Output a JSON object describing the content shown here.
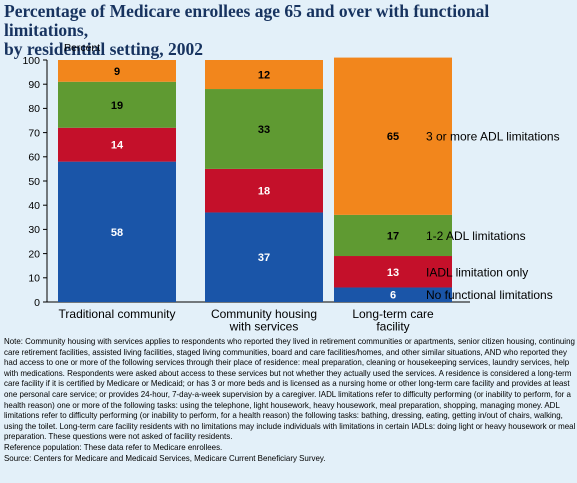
{
  "page": {
    "title": "Percentage of Medicare enrollees age 65 and over with functional limitations,\nby residential setting, 2002",
    "note": "Note: Community housing with services applies to respondents who reported they lived in retirement communities or apartments, senior citizen housing, continuing care retirement facilities, assisted living facilities, staged living communities, board and care facilities/homes, and other similar situations, AND who reported they had access to one or more of the following services through their place of residence: meal preparation, cleaning or housekeeping services, laundry services, help with medications. Respondents were asked about access to these services but not whether they actually used the services. A residence is considered a long-term care facility if it is certified by Medicare or Medicaid; or has 3 or more beds and is licensed as a nursing home or other long-term care facility and provides at least one personal care service; or provides 24-hour, 7-day-a-week supervision by a caregiver. IADL limitations refer to difficulty performing (or inability to perform, for a health reason) one or more of the following tasks: using the telephone, light housework, heavy housework, meal preparation, shopping, managing money. ADL limitations refer to difficulty performing (or inability to perform, for a health reason) the following tasks: bathing, dressing, eating, getting in/out of chairs, walking, using the toilet. Long-term care facility residents with no limitations may include individuals with limitations in certain IADLs: doing light or heavy housework or meal preparation. These questions were not asked of facility residents.",
    "reference": "Reference population: These data refer to Medicare enrollees.",
    "source": "Source: Centers for Medicare and Medicaid Services, Medicare Current Beneficiary Survey."
  },
  "chart_data": {
    "type": "bar",
    "stacked": true,
    "ylabel": "Percent",
    "ylim": [
      0,
      100
    ],
    "yticks": [
      0,
      10,
      20,
      30,
      40,
      50,
      60,
      70,
      80,
      90,
      100
    ],
    "grid": false,
    "legend_placement": "right, labels beside last bar",
    "categories": [
      "Traditional community",
      "Community housing\nwith services",
      "Long-term care\nfacility"
    ],
    "series": [
      {
        "name": "No functional limitations",
        "color": "#1a55a8",
        "values": [
          58,
          37,
          6
        ]
      },
      {
        "name": "IADL limitation only",
        "color": "#c4102a",
        "values": [
          14,
          18,
          13
        ]
      },
      {
        "name": "1-2 ADL limitations",
        "color": "#5f9a32",
        "values": [
          19,
          33,
          17
        ]
      },
      {
        "name": "3 or more ADL limitations",
        "color": "#f2861c",
        "values": [
          9,
          12,
          65
        ]
      }
    ]
  }
}
